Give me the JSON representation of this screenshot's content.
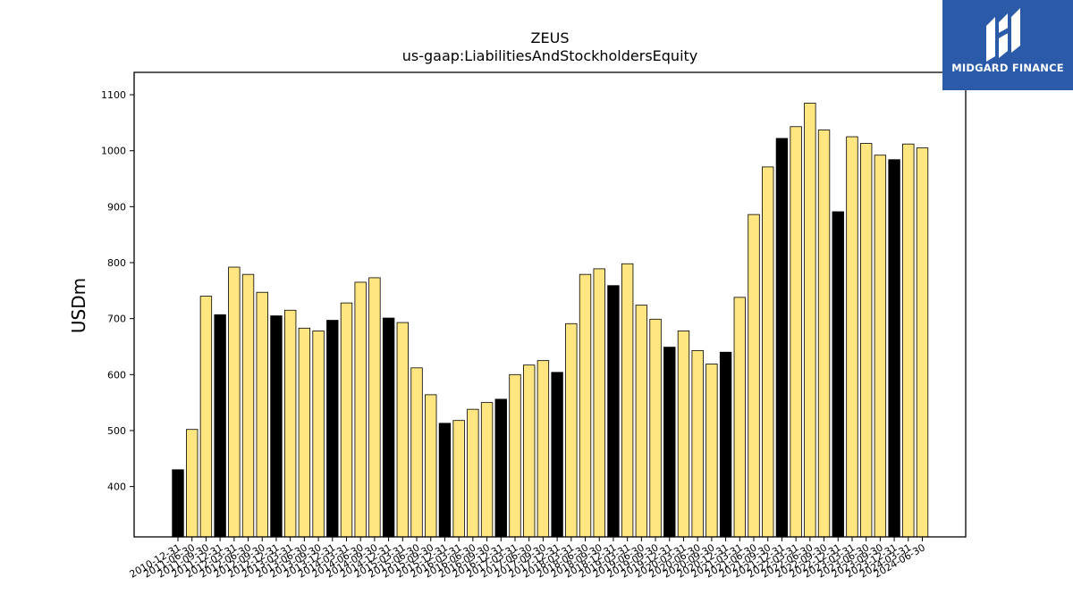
{
  "chart_data": {
    "type": "bar",
    "title": "ZEUS",
    "subtitle": "us-gaap:LiabilitiesAndStockholdersEquity",
    "xlabel": "",
    "ylabel": "USDm",
    "ylim": [
      310,
      1140
    ],
    "yticks": [
      400,
      500,
      600,
      700,
      800,
      900,
      1000,
      1100
    ],
    "grid": false,
    "colors": {
      "annual": "#000000",
      "quarterly": "#ffe680",
      "edge": "#000000"
    },
    "categories": [
      "2010-12-31",
      "2011-06-30",
      "2011-09-30",
      "2011-12-31",
      "2012-03-31",
      "2012-06-30",
      "2012-09-30",
      "2012-12-31",
      "2013-03-31",
      "2013-06-30",
      "2013-09-30",
      "2013-12-31",
      "2014-03-31",
      "2014-06-30",
      "2014-09-30",
      "2014-12-31",
      "2015-03-31",
      "2015-06-30",
      "2015-09-30",
      "2015-12-31",
      "2016-03-31",
      "2016-06-30",
      "2016-09-30",
      "2016-12-31",
      "2017-03-31",
      "2017-06-30",
      "2017-09-30",
      "2017-12-31",
      "2018-03-31",
      "2018-06-30",
      "2018-09-30",
      "2018-12-31",
      "2019-03-31",
      "2019-06-30",
      "2019-09-30",
      "2019-12-31",
      "2020-03-31",
      "2020-06-30",
      "2020-09-30",
      "2020-12-31",
      "2021-03-31",
      "2021-06-30",
      "2021-09-30",
      "2021-12-31",
      "2022-03-31",
      "2022-06-30",
      "2022-09-30",
      "2022-12-31",
      "2023-03-31",
      "2023-06-30",
      "2023-09-30",
      "2023-12-31",
      "2024-03-31",
      "2024-06-30"
    ],
    "values": [
      430,
      502,
      740,
      707,
      792,
      779,
      747,
      705,
      715,
      683,
      678,
      697,
      728,
      765,
      773,
      701,
      693,
      612,
      564,
      513,
      518,
      538,
      550,
      556,
      600,
      617,
      625,
      604,
      691,
      779,
      789,
      759,
      798,
      724,
      699,
      649,
      678,
      643,
      619,
      640,
      738,
      886,
      971,
      1022,
      1043,
      1085,
      1037,
      891,
      1025,
      1013,
      992,
      984,
      1012,
      1005
    ],
    "annual_flags": [
      true,
      false,
      false,
      true,
      false,
      false,
      false,
      true,
      false,
      false,
      false,
      true,
      false,
      false,
      false,
      true,
      false,
      false,
      false,
      true,
      false,
      false,
      false,
      true,
      false,
      false,
      false,
      true,
      false,
      false,
      false,
      true,
      false,
      false,
      false,
      true,
      false,
      false,
      false,
      true,
      false,
      false,
      false,
      true,
      false,
      false,
      false,
      true,
      false,
      false,
      false,
      true,
      false,
      false
    ]
  },
  "logo": {
    "text": "MIDGARD FINANCE",
    "background": "#2b5aa8"
  }
}
